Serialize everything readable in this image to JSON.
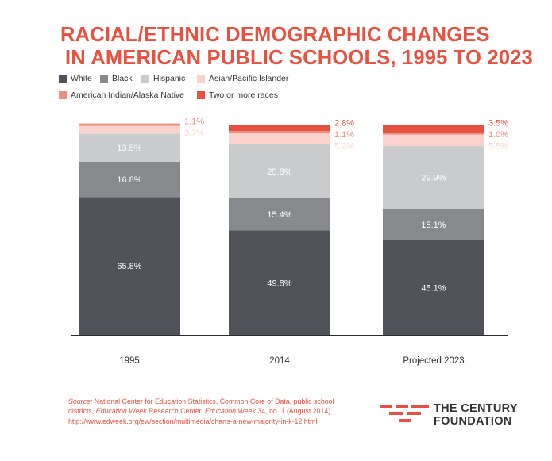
{
  "title": {
    "line1": "RACIAL/ETHNIC DEMOGRAPHIC CHANGES",
    "line2": "IN AMERICAN PUBLIC SCHOOLS, 1995 TO 2023"
  },
  "colors": {
    "White": "#51535b",
    "Black": "#88898c",
    "Hispanic": "#cacbcc",
    "Asian/Pacific Islander": "#fbd3cc",
    "American Indian/Alaska Native": "#ef8d80",
    "Two or more races": "#e8503f",
    "title": "#e8503f"
  },
  "legend": [
    {
      "label": "White",
      "color": "#51535b"
    },
    {
      "label": "Black",
      "color": "#88898c"
    },
    {
      "label": "Hispanic",
      "color": "#cacbcc"
    },
    {
      "label": "Asian/Pacific Islander",
      "color": "#fbd3cc"
    },
    {
      "label": "American Indian/Alaska Native",
      "color": "#ef8d80"
    },
    {
      "label": "Two or more races",
      "color": "#e8503f"
    }
  ],
  "chart_data": {
    "type": "bar",
    "stacked": true,
    "title": "RACIAL/ETHNIC DEMOGRAPHIC CHANGES IN AMERICAN PUBLIC SCHOOLS, 1995 TO 2023",
    "xlabel": "",
    "ylabel": "",
    "ylim": [
      0,
      100
    ],
    "grid": false,
    "legend_position": "top-left",
    "categories": [
      "1995",
      "2014",
      "Projected 2023"
    ],
    "series": [
      {
        "name": "White",
        "values": [
          65.8,
          49.8,
          45.1
        ],
        "labels": [
          "65.8%",
          "49.8%",
          "45.1%"
        ]
      },
      {
        "name": "Black",
        "values": [
          16.8,
          15.4,
          15.1
        ],
        "labels": [
          "16.8%",
          "15.4%",
          "15.1%"
        ]
      },
      {
        "name": "Hispanic",
        "values": [
          13.5,
          25.8,
          29.9
        ],
        "labels": [
          "13.5%",
          "25.8%",
          "29.9%"
        ]
      },
      {
        "name": "Asian/Pacific Islander",
        "values": [
          3.7,
          5.2,
          5.5
        ],
        "labels": [
          "3.7%",
          "5.2%",
          "5.5%"
        ]
      },
      {
        "name": "American Indian/Alaska Native",
        "values": [
          1.1,
          1.1,
          1.0
        ],
        "labels": [
          "1.1%",
          "1.1%",
          "1.0%"
        ]
      },
      {
        "name": "Two or more races",
        "values": [
          0,
          2.8,
          3.5
        ],
        "labels": [
          "",
          "2.8%",
          "3.5%"
        ]
      }
    ]
  },
  "source": {
    "label": "Source:",
    "text1": " National Center for Education Statistics, Common Core of Data, public school districts, ",
    "italic1": "Education Week",
    "text2": " Research Center. ",
    "italic2": "Education Week",
    "text3": " 34, no. 1 (August 2014). http://www.edweek.org/ew/section/multimedia/charts-a-new-majority-in-k-12.html."
  },
  "logo": {
    "line1": "THE CENTURY",
    "line2": "FOUNDATION"
  }
}
